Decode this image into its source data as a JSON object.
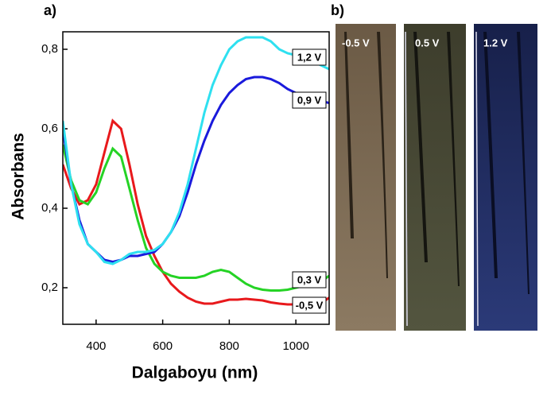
{
  "chart_data": {
    "type": "line",
    "panel_label": "a)",
    "xlabel": "Dalgaboyu (nm)",
    "ylabel": "Absorbans",
    "x": [
      300,
      325,
      350,
      375,
      400,
      425,
      450,
      475,
      500,
      525,
      550,
      575,
      600,
      625,
      650,
      675,
      700,
      725,
      750,
      775,
      800,
      825,
      850,
      875,
      900,
      925,
      950,
      975,
      1000,
      1025,
      1050,
      1075,
      1100
    ],
    "series": [
      {
        "name": "-0,5 V",
        "color": "#e8191c",
        "values": [
          0.51,
          0.45,
          0.41,
          0.42,
          0.46,
          0.54,
          0.62,
          0.6,
          0.51,
          0.41,
          0.33,
          0.28,
          0.24,
          0.21,
          0.19,
          0.175,
          0.165,
          0.16,
          0.16,
          0.165,
          0.17,
          0.17,
          0.172,
          0.17,
          0.168,
          0.163,
          0.16,
          0.158,
          0.158,
          0.16,
          0.16,
          0.16,
          0.175
        ]
      },
      {
        "name": "0,3 V",
        "color": "#25d325",
        "values": [
          0.56,
          0.47,
          0.42,
          0.41,
          0.44,
          0.5,
          0.55,
          0.53,
          0.45,
          0.37,
          0.3,
          0.26,
          0.24,
          0.23,
          0.225,
          0.225,
          0.225,
          0.23,
          0.24,
          0.245,
          0.24,
          0.225,
          0.21,
          0.2,
          0.195,
          0.193,
          0.193,
          0.195,
          0.2,
          0.205,
          0.21,
          0.215,
          0.23
        ]
      },
      {
        "name": "0,9 V",
        "color": "#1a1adc",
        "values": [
          0.6,
          0.46,
          0.37,
          0.31,
          0.29,
          0.27,
          0.265,
          0.27,
          0.28,
          0.28,
          0.285,
          0.29,
          0.31,
          0.34,
          0.38,
          0.44,
          0.51,
          0.57,
          0.62,
          0.66,
          0.69,
          0.71,
          0.725,
          0.73,
          0.73,
          0.725,
          0.715,
          0.7,
          0.69,
          0.68,
          0.675,
          0.67,
          0.665
        ]
      },
      {
        "name": "1,2 V",
        "color": "#2ee0f0",
        "values": [
          0.62,
          0.46,
          0.36,
          0.31,
          0.29,
          0.265,
          0.26,
          0.27,
          0.285,
          0.29,
          0.29,
          0.295,
          0.31,
          0.34,
          0.39,
          0.46,
          0.55,
          0.64,
          0.71,
          0.76,
          0.8,
          0.82,
          0.83,
          0.83,
          0.83,
          0.82,
          0.8,
          0.79,
          0.785,
          0.78,
          0.77,
          0.76,
          0.75
        ]
      }
    ],
    "xlim": [
      300,
      1100
    ],
    "ylim": [
      0.108,
      0.844
    ],
    "xticks": [
      400,
      600,
      800,
      1000
    ],
    "yticks": [
      {
        "value": 0.2,
        "label": "0,2"
      },
      {
        "value": 0.4,
        "label": "0,4"
      },
      {
        "value": 0.6,
        "label": "0,6"
      },
      {
        "value": 0.8,
        "label": "0,8"
      }
    ]
  },
  "photos": {
    "panel_label": "b)",
    "items": [
      "-0.5 V",
      "0.5 V",
      "1.2 V"
    ]
  }
}
